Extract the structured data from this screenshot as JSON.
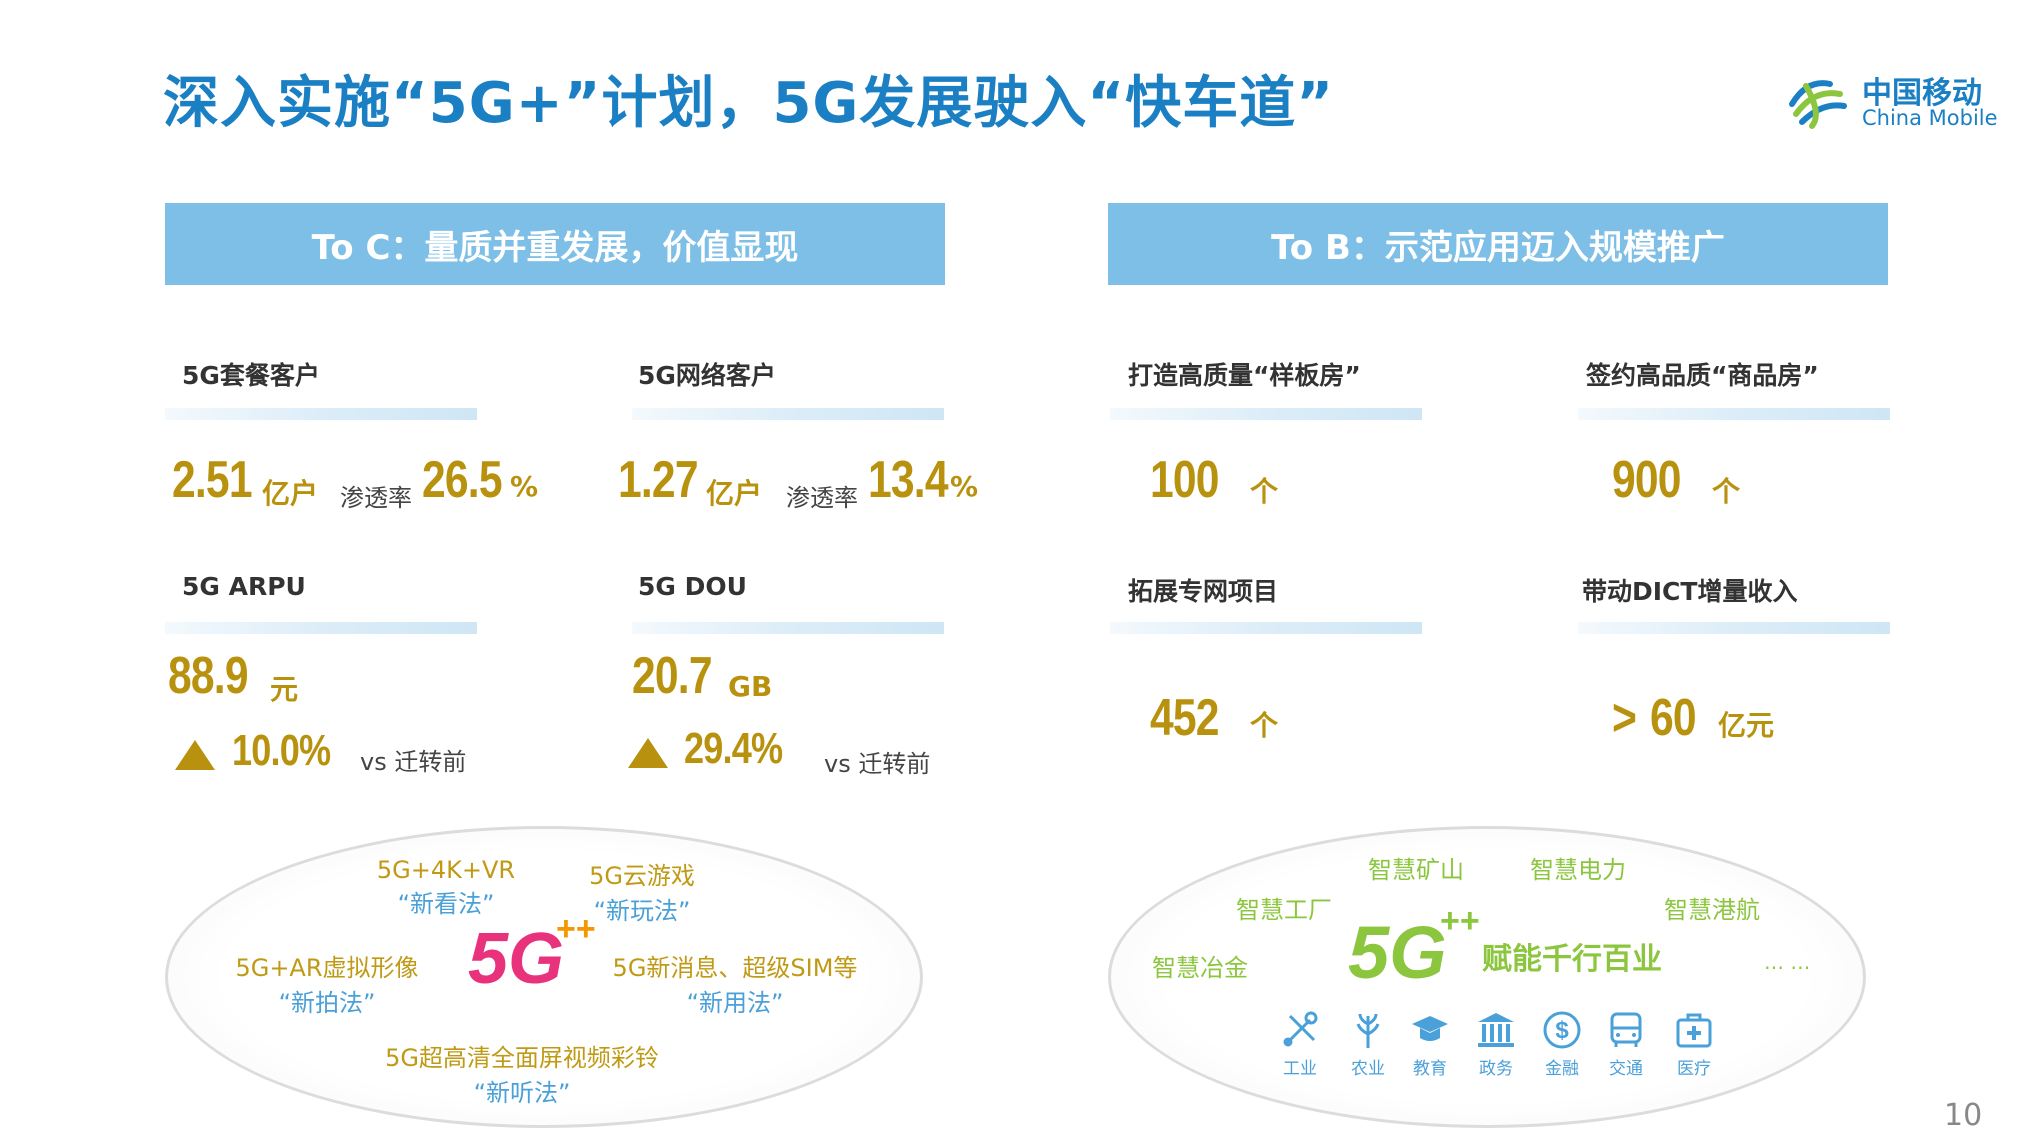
{
  "title": "深入实施“5G+”计划，5G发展驶入“快车道”",
  "logo": {
    "cn": "中国移动",
    "en": "China Mobile"
  },
  "to_c": {
    "banner": "To C：量质并重发展，价值显现",
    "metrics": [
      {
        "label": "5G套餐客户",
        "value": "2.51",
        "unit": "亿户",
        "rate_label": "渗透率",
        "rate": "26.5",
        "rate_unit": "%"
      },
      {
        "label": "5G网络客户",
        "value": "1.27",
        "unit": "亿户",
        "rate_label": "渗透率",
        "rate": "13.4",
        "rate_unit": "%"
      },
      {
        "label": "5G ARPU",
        "value": "88.9",
        "unit": "元",
        "change": "10.0%",
        "vs": "vs 迁转前"
      },
      {
        "label": "5G  DOU",
        "value": "20.7",
        "unit": "GB",
        "change": "29.4%",
        "vs": "vs 迁转前"
      }
    ],
    "ellipse": {
      "logo_text": "5G",
      "logo_plus": "++",
      "items": [
        {
          "line1": "5G+4K+VR",
          "line2": "“新看法”"
        },
        {
          "line1": "5G云游戏",
          "line2": "“新玩法”"
        },
        {
          "line1": "5G+AR虚拟形像",
          "line2": "“新拍法”"
        },
        {
          "line1": "5G新消息、超级SIM等",
          "line2": "“新用法”"
        },
        {
          "line1": "5G超高清全面屏视频彩铃",
          "line2": "“新听法”"
        }
      ]
    }
  },
  "to_b": {
    "banner": "To B：示范应用迈入规模推广",
    "metrics": [
      {
        "label": "打造高质量“样板房”",
        "value": "100",
        "unit": "个"
      },
      {
        "label": "签约高品质“商品房”",
        "value": "900",
        "unit": "个"
      },
      {
        "label": "拓展专网项目",
        "value": "452",
        "unit": "个"
      },
      {
        "label": "带动DICT增量收入",
        "prefix": ">",
        "value": "60",
        "unit": "亿元"
      }
    ],
    "ellipse": {
      "logo_text": "5G",
      "logo_plus": "++",
      "slogan": "赋能千行百业",
      "scenarios": [
        "智慧矿山",
        "智慧电力",
        "智慧工厂",
        "智慧港航",
        "智慧冶金",
        "… …"
      ],
      "industries": [
        "工业",
        "农业",
        "教育",
        "政务",
        "金融",
        "交通",
        "医疗"
      ]
    }
  },
  "page_number": "10",
  "colors": {
    "title": "#1b7fc4",
    "banner": "#7dbfe6",
    "gold": "#b8920f",
    "green": "#8cc63f",
    "blue": "#4aa0d8"
  }
}
